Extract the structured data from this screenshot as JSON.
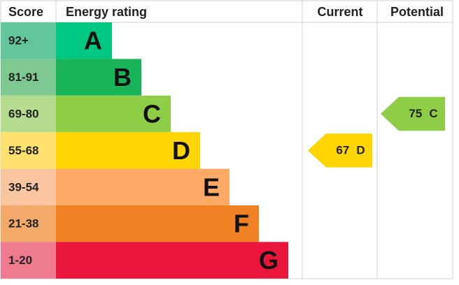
{
  "header": {
    "score": "Score",
    "rating": "Energy rating",
    "current": "Current",
    "potential": "Potential"
  },
  "bands": [
    {
      "score": "92+",
      "letter": "A",
      "color": "#00c781",
      "score_color": "#63c59c"
    },
    {
      "score": "81-91",
      "letter": "B",
      "color": "#19b459",
      "score_color": "#7dc991"
    },
    {
      "score": "69-80",
      "letter": "C",
      "color": "#8dce46",
      "score_color": "#b5dc8e"
    },
    {
      "score": "55-68",
      "letter": "D",
      "color": "#ffd500",
      "score_color": "#fde16c"
    },
    {
      "score": "39-54",
      "letter": "E",
      "color": "#fcaa65",
      "score_color": "#f9c6a0"
    },
    {
      "score": "21-38",
      "letter": "F",
      "color": "#ef8023",
      "score_color": "#f2a96a"
    },
    {
      "score": "1-20",
      "letter": "G",
      "color": "#e9153b",
      "score_color": "#ee7c8e"
    }
  ],
  "current": {
    "score": 67,
    "letter": "D",
    "color": "#ffd500"
  },
  "potential": {
    "score": 75,
    "letter": "C",
    "color": "#8dce46"
  }
}
